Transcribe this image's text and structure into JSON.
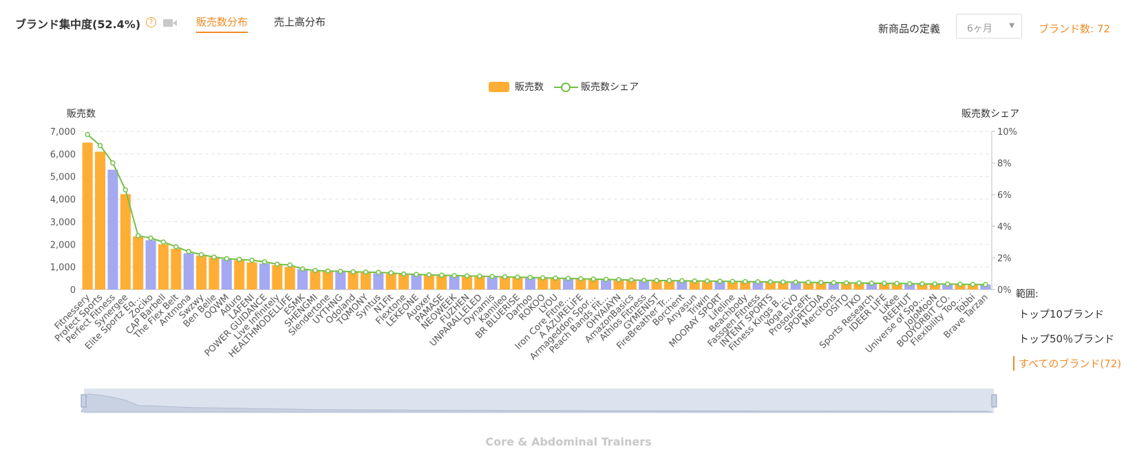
{
  "header": {
    "title": "ブランド集中度(52.4%)",
    "tabs": [
      {
        "label": "販売数分布",
        "active": true
      },
      {
        "label": "売上高分布",
        "active": false
      }
    ],
    "definition_label": "新商品の定義",
    "definition_select_value": "6ヶ月",
    "brand_count_label": "ブランド数: 72"
  },
  "range": {
    "label": "範囲:",
    "items": [
      {
        "label": "トップ10ブランド",
        "active": false
      },
      {
        "label": "トップ50％ブランド",
        "active": false
      },
      {
        "label": "すべてのブランド(72)",
        "active": true
      }
    ]
  },
  "category_subtitle": "Core & Abdominal Trainers",
  "colors": {
    "accent": "#f08a24",
    "bar_orange": "#ffae35",
    "bar_purple": "#a4a9f2",
    "line_green": "#72c045"
  },
  "icons": [
    "help-icon",
    "video-camera-icon",
    "chevron-down-icon"
  ],
  "chart_data": {
    "type": "bar",
    "legend": [
      "販売数",
      "販売数シェア"
    ],
    "legend_position": "top-center",
    "ylabel": "販売数",
    "y2label": "販売数シェア",
    "ylim": [
      0,
      7000
    ],
    "y_ticks": [
      "0",
      "1,000",
      "2,000",
      "3,000",
      "4,000",
      "5,000",
      "6,000",
      "7,000"
    ],
    "y2lim": [
      0,
      10
    ],
    "y2_ticks": [
      "0%",
      "2%",
      "4%",
      "6%",
      "8%",
      "10%"
    ],
    "grid": true,
    "categories": [
      "Fitnessery",
      "Profect Sports",
      "Perfect Fitness",
      "Synergee",
      "Elite Sportz Eq...",
      "Zociko",
      "CAP Barbell",
      "The Flex Belt",
      "Antmona",
      "Swzwy",
      "Ben Belle",
      "OQWM",
      "Aduro",
      "LAFENI",
      "POWER GUIDANCE",
      "Live Infinitely",
      "HEALTHMODELLIFE",
      "ESMK",
      "SHENGMI",
      "Slendertone",
      "UYTHNG",
      "Odoland",
      "TQMONY",
      "Syntus",
      "N1Fit",
      "Flextone",
      "LEKEONE",
      "Auoxer",
      "PAMASE",
      "NEOWEEK",
      "FUZHEN",
      "UNPARALLELED",
      "Dynamis",
      "Kamileo",
      "BR BLUERISE",
      "Darhoo",
      "ROKOO",
      "LYOU",
      "Iron Core Fitne...",
      "A AZURELIFE",
      "Armageddon Spor...",
      "Peach Bands Fit...",
      "OHYAIAYN",
      "AmazonBasics",
      "Athlos Fitness",
      "GYMENIST",
      "FireBreather Tr...",
      "Borchent",
      "Anyasun",
      "Triwin",
      "MOORAY SPORT",
      "Lifeline",
      "Beachbody",
      "Fassgen Fitness",
      "INTENT SPORTS",
      "Fitness Kings B...",
      "Yoga EVO",
      "ProsourceFit",
      "SPORTCDIA",
      "Mercitons",
      "OSITO",
      "TKO",
      "Sports Research",
      "IDEER LIFE",
      "LiKee",
      "REEHUT",
      "Universe of Spo...",
      "JoJoMooN",
      "BODYORBIT CO.",
      "Flexibility Too...",
      "Tobbi",
      "Brave Tarzan"
    ],
    "series": [
      {
        "name": "販売数",
        "values": [
          6500,
          6100,
          5300,
          4220,
          2350,
          2180,
          2000,
          1800,
          1600,
          1500,
          1420,
          1340,
          1300,
          1200,
          1150,
          1080,
          1000,
          900,
          820,
          800,
          780,
          760,
          740,
          720,
          700,
          680,
          660,
          640,
          620,
          600,
          580,
          560,
          540,
          530,
          520,
          510,
          500,
          490,
          480,
          470,
          460,
          450,
          440,
          430,
          420,
          410,
          400,
          390,
          380,
          370,
          360,
          350,
          340,
          330,
          320,
          310,
          300,
          295,
          290,
          285,
          280,
          275,
          270,
          265,
          260,
          255,
          250,
          245,
          240,
          235,
          230,
          225
        ]
      },
      {
        "name": "販売数シェア",
        "values": [
          9.8,
          9.1,
          8.0,
          6.3,
          3.4,
          3.25,
          3.0,
          2.7,
          2.4,
          2.2,
          2.05,
          1.95,
          1.9,
          1.85,
          1.75,
          1.6,
          1.55,
          1.3,
          1.2,
          1.17,
          1.15,
          1.12,
          1.1,
          1.08,
          1.05,
          0.98,
          0.95,
          0.93,
          0.9,
          0.88,
          0.86,
          0.84,
          0.82,
          0.8,
          0.78,
          0.76,
          0.74,
          0.72,
          0.7,
          0.68,
          0.66,
          0.64,
          0.62,
          0.6,
          0.58,
          0.57,
          0.56,
          0.55,
          0.54,
          0.53,
          0.52,
          0.51,
          0.5,
          0.49,
          0.48,
          0.47,
          0.46,
          0.45,
          0.44,
          0.43,
          0.42,
          0.41,
          0.4,
          0.39,
          0.38,
          0.37,
          0.36,
          0.35,
          0.34,
          0.33,
          0.32,
          0.31
        ]
      }
    ]
  }
}
